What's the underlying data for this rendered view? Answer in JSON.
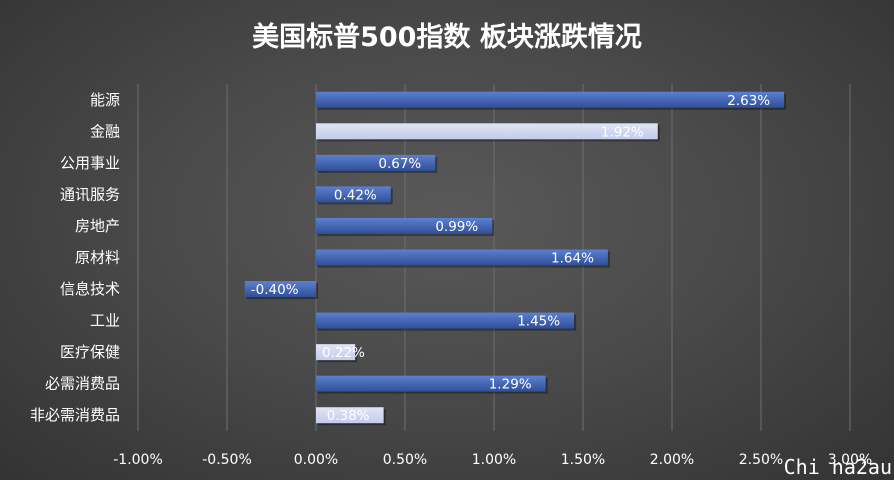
{
  "chart_data": {
    "type": "bar",
    "orientation": "horizontal",
    "title": "美国标普500指数 板块涨跌情况",
    "categories": [
      "能源",
      "金融",
      "公用事业",
      "通讯服务",
      "房地产",
      "原材料",
      "信息技术",
      "工业",
      "医疗保健",
      "必需消费品",
      "非必需消费品"
    ],
    "values": [
      2.63,
      1.92,
      0.67,
      0.42,
      0.99,
      1.64,
      -0.4,
      1.45,
      0.22,
      1.29,
      0.38
    ],
    "data_labels": [
      "2.63%",
      "1.92%",
      "0.67%",
      "0.42%",
      "0.99%",
      "1.64%",
      "-0.40%",
      "1.45%",
      "0.22%",
      "1.29%",
      "0.38%"
    ],
    "highlighted": [
      false,
      true,
      false,
      false,
      false,
      false,
      false,
      false,
      true,
      false,
      true
    ],
    "xlim": [
      -1.0,
      3.0
    ],
    "x_ticks": [
      -1.0,
      -0.5,
      0.0,
      0.5,
      1.0,
      1.5,
      2.0,
      2.5,
      3.0
    ],
    "x_tick_labels": [
      "-1.00%",
      "-0.50%",
      "0.00%",
      "0.50%",
      "1.00%",
      "1.50%",
      "2.00%",
      "2.50%",
      "3.00%"
    ],
    "grid": "vertical",
    "legend": "none",
    "colors": {
      "bar_dark": "#2f4f98",
      "bar_dark_light": "#5c7fd0",
      "bar_light": "#dfe4f6",
      "bar_light_light": "#c3ccec",
      "grid": "#6e6e6e",
      "text": "#ffffff"
    }
  },
  "watermark": "Chi na2au"
}
